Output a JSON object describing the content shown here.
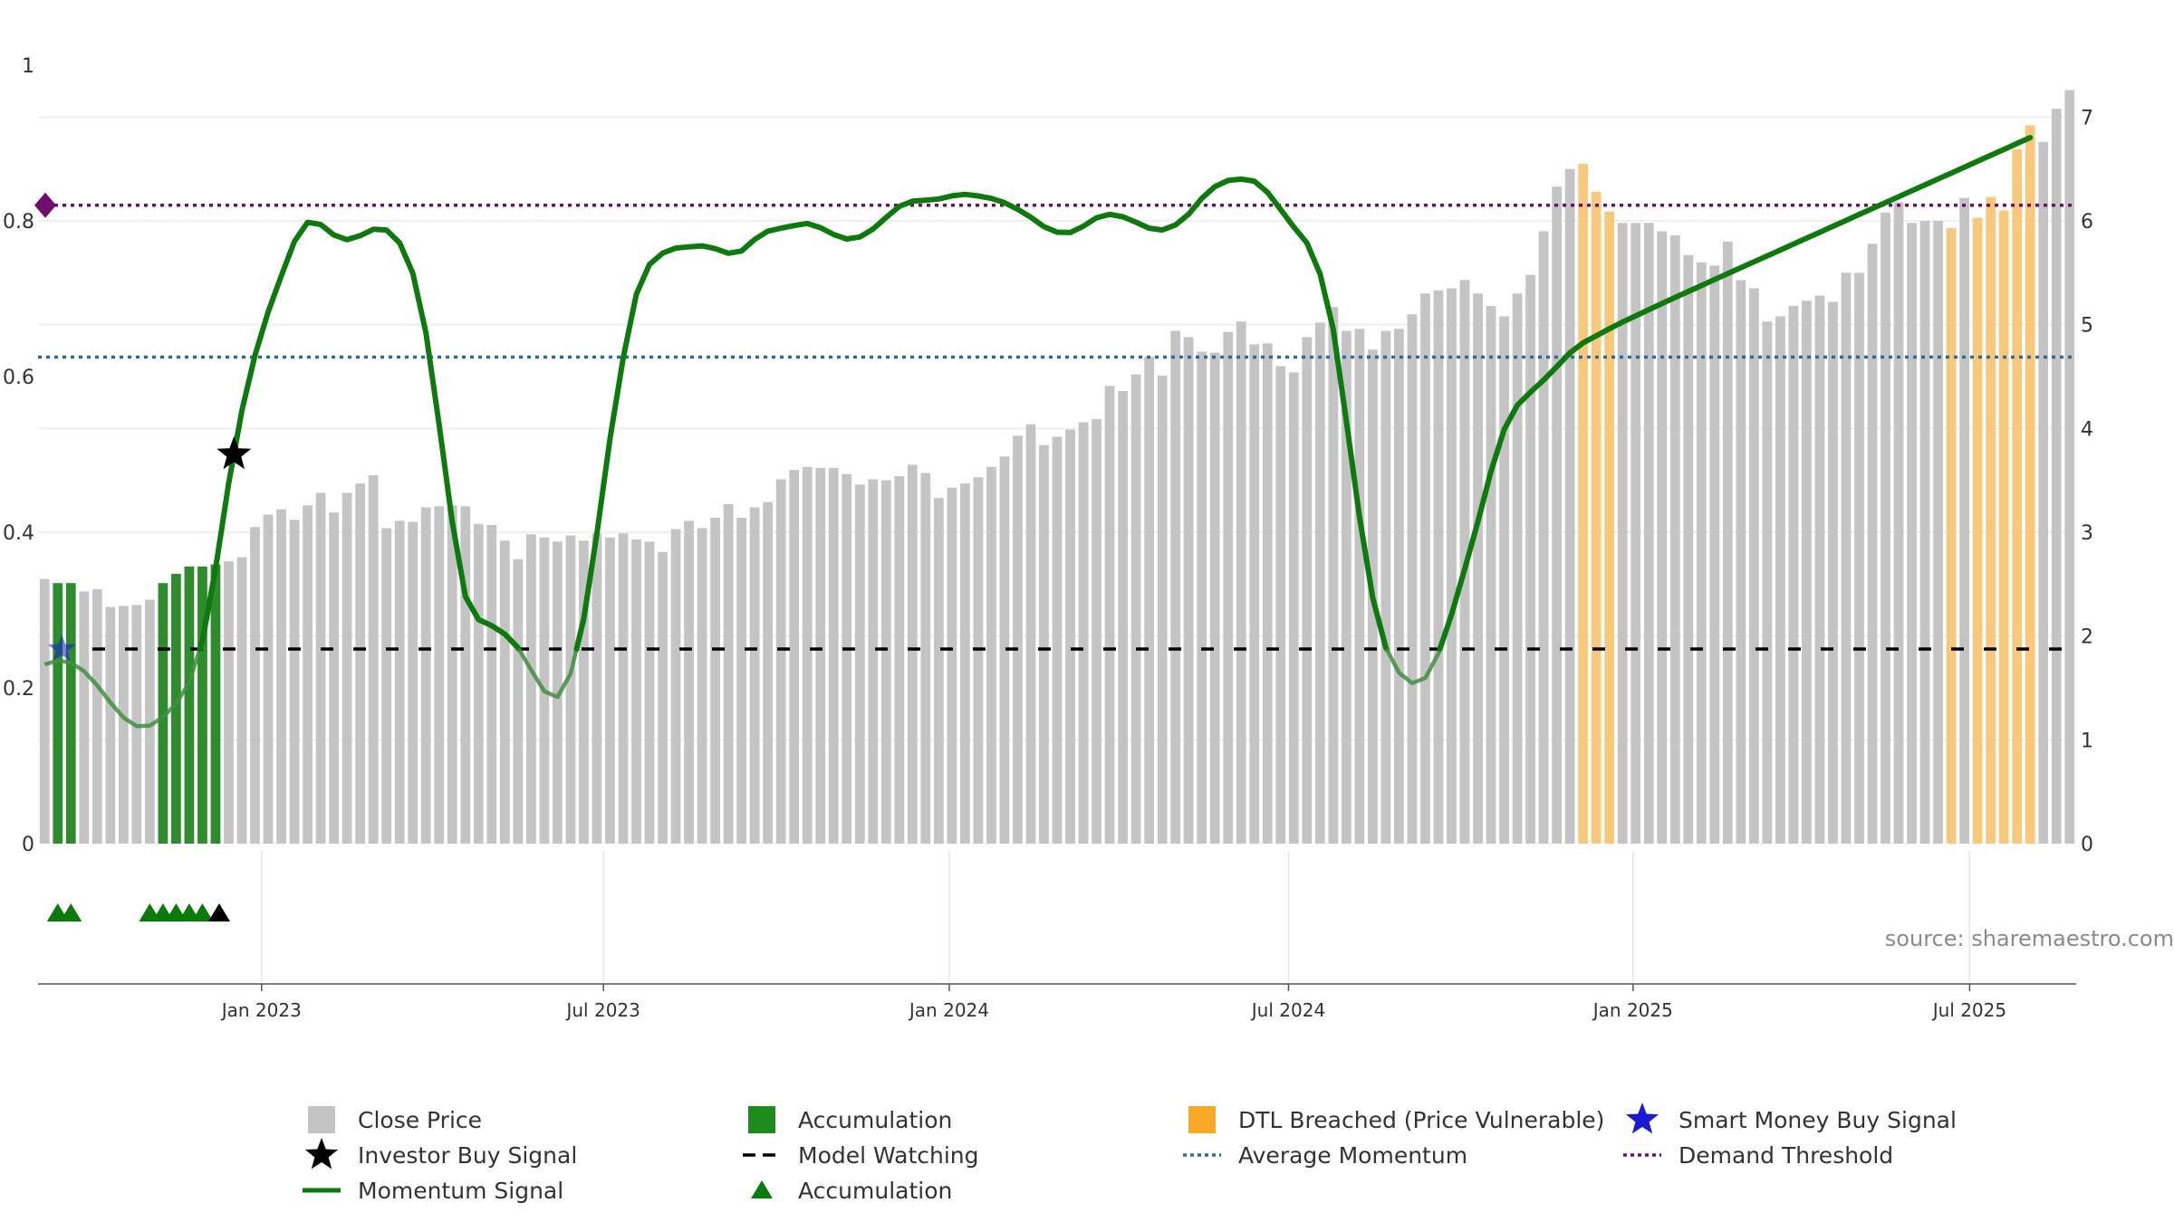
{
  "chart_data": {
    "type": "bar",
    "source": "source: sharemaestro.com",
    "left_axis": {
      "ticks": [
        0,
        0.2,
        0.4,
        0.6,
        0.8,
        1
      ],
      "labels": [
        "0",
        "0.2",
        "0.4",
        "0.6",
        "0.8",
        "1"
      ]
    },
    "right_axis": {
      "ticks": [
        0,
        1,
        2,
        3,
        4,
        5,
        6,
        7
      ],
      "labels": [
        "0",
        "1",
        "2",
        "3",
        "4",
        "5",
        "6",
        "7"
      ],
      "ylim": [
        0,
        7.5
      ]
    },
    "x_axis": {
      "ticks": [
        {
          "label": "Jan 2023",
          "index": 16.5
        },
        {
          "label": "Jul 2023",
          "index": 42.5
        },
        {
          "label": "Jan 2024",
          "index": 68.8
        },
        {
          "label": "Jul 2024",
          "index": 94.6
        },
        {
          "label": "Jan 2025",
          "index": 120.8
        },
        {
          "label": "Jul 2025",
          "index": 146.4
        }
      ]
    },
    "colors": {
      "close": "#c4c4c4",
      "accumulation": "#2e8b2e",
      "dtl": "#f8c97c",
      "momentum": "#0e7a0e",
      "watch": "#000000",
      "avg_momentum": "#2a6e94",
      "demand": "#6e0f6e",
      "marker_green": "#0a7a0a",
      "star_black": "#000000",
      "star_blue": "#1a1ad6"
    },
    "close_prices": [
      2.55,
      2.51,
      2.51,
      2.43,
      2.45,
      2.28,
      2.29,
      2.3,
      2.35,
      2.51,
      2.6,
      2.67,
      2.67,
      2.69,
      2.72,
      2.76,
      3.05,
      3.17,
      3.22,
      3.12,
      3.26,
      3.38,
      3.19,
      3.38,
      3.47,
      3.55,
      3.04,
      3.11,
      3.1,
      3.24,
      3.25,
      3.26,
      3.25,
      3.08,
      3.07,
      2.92,
      2.74,
      2.98,
      2.95,
      2.91,
      2.97,
      2.92,
      2.99,
      2.95,
      2.99,
      2.93,
      2.91,
      2.81,
      3.03,
      3.11,
      3.04,
      3.14,
      3.27,
      3.14,
      3.24,
      3.29,
      3.51,
      3.6,
      3.63,
      3.62,
      3.62,
      3.56,
      3.46,
      3.51,
      3.5,
      3.54,
      3.65,
      3.57,
      3.33,
      3.43,
      3.47,
      3.53,
      3.63,
      3.73,
      3.93,
      4.04,
      3.84,
      3.92,
      3.99,
      4.06,
      4.09,
      4.41,
      4.36,
      4.52,
      4.69,
      4.51,
      4.94,
      4.88,
      4.74,
      4.73,
      4.93,
      5.03,
      4.81,
      4.82,
      4.6,
      4.54,
      4.88,
      5.02,
      5.17,
      4.94,
      4.96,
      4.76,
      4.94,
      4.96,
      5.1,
      5.3,
      5.33,
      5.35,
      5.43,
      5.3,
      5.18,
      5.08,
      5.3,
      5.48,
      5.9,
      6.33,
      6.5,
      6.55,
      6.28,
      6.09,
      5.98,
      5.98,
      5.98,
      5.9,
      5.86,
      5.67,
      5.6,
      5.57,
      5.8,
      5.43,
      5.35,
      5.03,
      5.08,
      5.18,
      5.23,
      5.28,
      5.22,
      5.5,
      5.5,
      5.78,
      6.08,
      6.18,
      5.98,
      6.0,
      6.0,
      5.93,
      6.22,
      6.03,
      6.23,
      6.1,
      6.69,
      6.92,
      6.76,
      7.08,
      7.26
    ],
    "accumulation_bars": [
      1,
      2,
      9,
      10,
      11,
      12,
      13
    ],
    "dtl_bars": [
      117,
      118,
      119,
      145,
      147,
      148,
      149,
      150,
      151
    ],
    "momentum": [
      0.2303,
      0.2351,
      0.2325,
      0.2215,
      0.2032,
      0.1814,
      0.162,
      0.1509,
      0.1516,
      0.1625,
      0.1798,
      0.2071,
      0.2607,
      0.3534,
      0.4631,
      0.556,
      0.6273,
      0.6829,
      0.7292,
      0.7737,
      0.7981,
      0.7952,
      0.7819,
      0.7758,
      0.7809,
      0.7892,
      0.7883,
      0.7717,
      0.7328,
      0.6563,
      0.539,
      0.4131,
      0.3174,
      0.2878,
      0.28,
      0.2692,
      0.2518,
      0.223,
      0.1957,
      0.1883,
      0.2182,
      0.2886,
      0.3979,
      0.5208,
      0.624,
      0.7058,
      0.7441,
      0.7586,
      0.765,
      0.7666,
      0.7679,
      0.7643,
      0.7584,
      0.7613,
      0.7762,
      0.7868,
      0.7906,
      0.794,
      0.7966,
      0.7913,
      0.7826,
      0.7768,
      0.7793,
      0.7895,
      0.8044,
      0.8186,
      0.8252,
      0.8265,
      0.8281,
      0.8321,
      0.8341,
      0.832,
      0.8288,
      0.8234,
      0.8149,
      0.8045,
      0.7926,
      0.7855,
      0.785,
      0.7931,
      0.804,
      0.8084,
      0.8052,
      0.7982,
      0.7906,
      0.7883,
      0.7946,
      0.8085,
      0.8289,
      0.8441,
      0.8519,
      0.8536,
      0.851,
      0.8366,
      0.8145,
      0.7921,
      0.7716,
      0.7319,
      0.6611,
      0.5421,
      0.4192,
      0.3161,
      0.2517,
      0.2196,
      0.2062,
      0.2128,
      0.2443,
      0.2945,
      0.3529,
      0.4135,
      0.4781,
      0.5319,
      0.5632,
      0.58,
      0.5955,
      0.6127,
      0.6305,
      0.6432,
      0.6523,
      0.6614,
      0.67,
      0.678,
      0.6859,
      0.6938,
      0.7016,
      0.7093,
      0.7169,
      0.7246,
      0.7322,
      0.7398,
      0.7474,
      0.755,
      0.7626,
      0.7702,
      0.7778,
      0.7854,
      0.793,
      0.8006,
      0.8082,
      0.8158,
      0.8234,
      0.831,
      0.8386,
      0.8462,
      0.8538,
      0.8614,
      0.869,
      0.8766,
      0.8842,
      0.8918,
      0.8994,
      0.907
    ],
    "average_momentum": 0.625,
    "demand_threshold": 0.82,
    "model_watching": 0.25,
    "investor_buy_signal": {
      "index": 14.4,
      "value": 0.5
    },
    "smart_money_buy_signal": {
      "index": 1.3,
      "value": 0.25
    },
    "accumulation_markers": [
      1,
      2,
      8,
      9,
      10,
      11,
      12
    ],
    "investor_buy_marker": [
      13
    ],
    "legend": [
      {
        "key": "close",
        "label": "Close Price"
      },
      {
        "key": "accumulation_bar",
        "label": "Accumulation"
      },
      {
        "key": "dtl",
        "label": "DTL Breached (Price Vulnerable)"
      },
      {
        "key": "smart_money",
        "label": "Smart Money Buy Signal"
      },
      {
        "key": "investor_buy",
        "label": "Investor Buy Signal"
      },
      {
        "key": "model_watching",
        "label": "Model Watching"
      },
      {
        "key": "avg_momentum",
        "label": "Average Momentum"
      },
      {
        "key": "demand",
        "label": "Demand Threshold"
      },
      {
        "key": "momentum",
        "label": "Momentum Signal"
      },
      {
        "key": "accumulation_marker",
        "label": "Accumulation"
      }
    ]
  }
}
